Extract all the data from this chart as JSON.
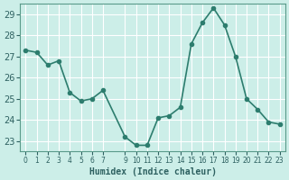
{
  "x": [
    0,
    1,
    2,
    3,
    4,
    5,
    6,
    7,
    9,
    10,
    11,
    12,
    13,
    14,
    15,
    16,
    17,
    18,
    19,
    20,
    21,
    22,
    23
  ],
  "y": [
    27.3,
    27.2,
    26.6,
    26.8,
    25.3,
    24.9,
    25.0,
    25.4,
    23.2,
    22.8,
    22.8,
    24.1,
    24.2,
    24.6,
    27.6,
    28.6,
    29.3,
    28.5,
    27.0,
    25.0,
    24.5,
    23.9,
    23.8
  ],
  "bg_color": "#cceee8",
  "grid_color": "#ffffff",
  "line_color": "#2d7d6e",
  "marker_color": "#2d7d6e",
  "xlabel": "Humidex (Indice chaleur)",
  "xlim": [
    -0.5,
    23.5
  ],
  "ylim": [
    22.5,
    29.5
  ],
  "yticks": [
    23,
    24,
    25,
    26,
    27,
    28,
    29
  ],
  "xtick_positions": [
    0,
    1,
    2,
    3,
    4,
    5,
    6,
    7,
    9,
    10,
    11,
    12,
    13,
    14,
    15,
    16,
    17,
    18,
    19,
    20,
    21,
    22,
    23
  ],
  "xtick_labels": [
    "0",
    "1",
    "2",
    "3",
    "4",
    "5",
    "6",
    "7",
    "9",
    "10",
    "11",
    "12",
    "13",
    "14",
    "15",
    "16",
    "17",
    "18",
    "19",
    "20",
    "21",
    "22",
    "23"
  ]
}
